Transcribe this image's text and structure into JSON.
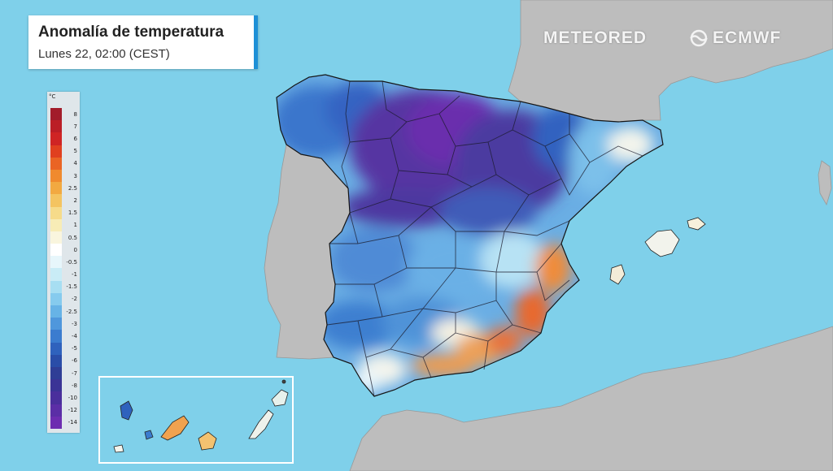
{
  "title": "Anomalía de temperatura",
  "subtitle": "Lunes 22, 02:00 (CEST)",
  "brands": {
    "meteored": "METEORED",
    "ecmwf": "ECMWF"
  },
  "legend": {
    "unit": "°C",
    "labels": [
      "8",
      "7",
      "6",
      "5",
      "4",
      "3",
      "2.5",
      "2",
      "1.5",
      "1",
      "0.5",
      "0",
      "-0.5",
      "-1",
      "-1.5",
      "-2",
      "-2.5",
      "-3",
      "-4",
      "-5",
      "-6",
      "-7",
      "-8",
      "-10",
      "-12",
      "-14"
    ],
    "colors": [
      "#a21c2a",
      "#bb1e26",
      "#cf2424",
      "#e0401f",
      "#ea6424",
      "#f08a2e",
      "#f2a941",
      "#f4c461",
      "#f6db8a",
      "#f7ecb6",
      "#f9f5de",
      "#ffffff",
      "#e7f6fb",
      "#c9ecf6",
      "#a7def2",
      "#86cbee",
      "#67b3e6",
      "#4f97dc",
      "#3b7ccf",
      "#2f62bd",
      "#2a4da8",
      "#2f3e96",
      "#3b3496",
      "#4a2f9c",
      "#5b2ea6",
      "#6d2db0"
    ]
  },
  "colors": {
    "sea": "#7fd0ea",
    "land": "#bdbdbd",
    "card_accent": "#1e90d6"
  }
}
